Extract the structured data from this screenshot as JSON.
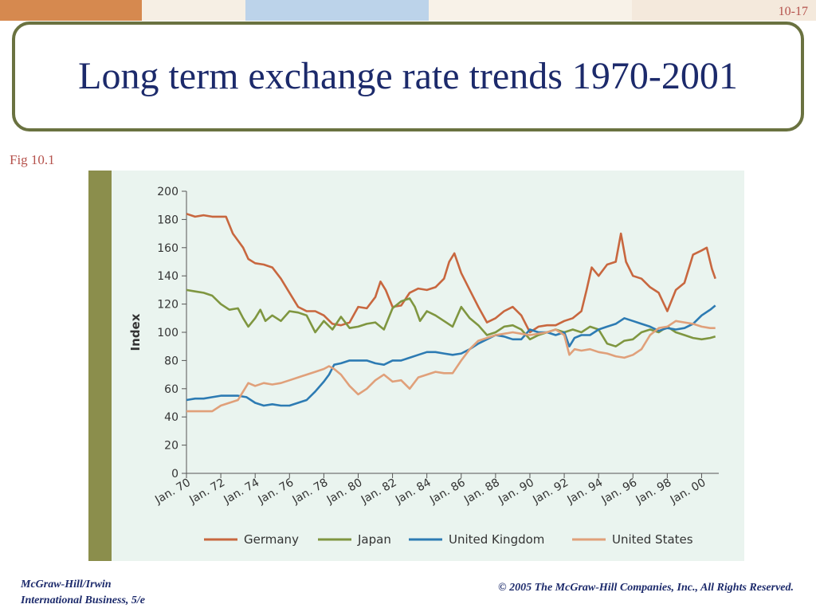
{
  "slide": {
    "number": "10-17",
    "title": "Long term exchange rate trends 1970-2001",
    "fig_label": "Fig 10.1",
    "footer_left_line1": "McGraw-Hill/Irwin",
    "footer_left_line2": "International Business, 5/e",
    "footer_right": "© 2005 The McGraw-Hill Companies, Inc., All Rights Reserved."
  },
  "colors": {
    "band_orange": "#d6894f",
    "band_blue": "#bcd3ea",
    "title_border": "#6a7240",
    "title_text": "#1c2a6b",
    "chart_background": "#eaf4ef",
    "chart_stripe": "#8b8e4c"
  },
  "chart_data": {
    "type": "line",
    "title": "",
    "xlabel": "",
    "ylabel": "Index",
    "xlim": [
      1970,
      2001
    ],
    "ylim": [
      0,
      200
    ],
    "y_ticks": [
      0,
      20,
      40,
      60,
      80,
      100,
      120,
      140,
      160,
      180,
      200
    ],
    "x_ticks": [
      {
        "value": 1970,
        "label": "Jan. 70"
      },
      {
        "value": 1972,
        "label": "Jan. 72"
      },
      {
        "value": 1974,
        "label": "Jan. 74"
      },
      {
        "value": 1976,
        "label": "Jan. 76"
      },
      {
        "value": 1978,
        "label": "Jan. 78"
      },
      {
        "value": 1980,
        "label": "Jan. 80"
      },
      {
        "value": 1982,
        "label": "Jan. 82"
      },
      {
        "value": 1984,
        "label": "Jan. 84"
      },
      {
        "value": 1986,
        "label": "Jan. 86"
      },
      {
        "value": 1988,
        "label": "Jan. 88"
      },
      {
        "value": 1990,
        "label": "Jan. 90"
      },
      {
        "value": 1992,
        "label": "Jan. 92"
      },
      {
        "value": 1994,
        "label": "Jan. 94"
      },
      {
        "value": 1996,
        "label": "Jan. 96"
      },
      {
        "value": 1998,
        "label": "Jan. 98"
      },
      {
        "value": 2000,
        "label": "Jan. 00"
      }
    ],
    "grid": false,
    "legend_position": "bottom",
    "series": [
      {
        "name": "Germany",
        "color": "#c8673f",
        "points": [
          [
            1970,
            184
          ],
          [
            1970.5,
            182
          ],
          [
            1971,
            183
          ],
          [
            1971.5,
            182
          ],
          [
            1972,
            182
          ],
          [
            1972.3,
            182
          ],
          [
            1972.5,
            176
          ],
          [
            1972.7,
            170
          ],
          [
            1973,
            165
          ],
          [
            1973.3,
            160
          ],
          [
            1973.6,
            152
          ],
          [
            1974,
            149
          ],
          [
            1974.5,
            148
          ],
          [
            1975,
            146
          ],
          [
            1975.5,
            138
          ],
          [
            1976,
            128
          ],
          [
            1976.5,
            118
          ],
          [
            1977,
            115
          ],
          [
            1977.5,
            115
          ],
          [
            1978,
            112
          ],
          [
            1978.5,
            106
          ],
          [
            1979,
            105
          ],
          [
            1979.5,
            107
          ],
          [
            1980,
            118
          ],
          [
            1980.5,
            117
          ],
          [
            1981,
            125
          ],
          [
            1981.3,
            136
          ],
          [
            1981.6,
            130
          ],
          [
            1982,
            118
          ],
          [
            1982.5,
            119
          ],
          [
            1983,
            128
          ],
          [
            1983.5,
            131
          ],
          [
            1984,
            130
          ],
          [
            1984.5,
            132
          ],
          [
            1985,
            138
          ],
          [
            1985.3,
            150
          ],
          [
            1985.6,
            156
          ],
          [
            1986,
            142
          ],
          [
            1986.5,
            130
          ],
          [
            1987,
            118
          ],
          [
            1987.5,
            107
          ],
          [
            1988,
            110
          ],
          [
            1988.5,
            115
          ],
          [
            1989,
            118
          ],
          [
            1989.5,
            112
          ],
          [
            1990,
            100
          ],
          [
            1990.5,
            104
          ],
          [
            1991,
            105
          ],
          [
            1991.5,
            105
          ],
          [
            1992,
            108
          ],
          [
            1992.5,
            110
          ],
          [
            1993,
            115
          ],
          [
            1993.3,
            130
          ],
          [
            1993.6,
            146
          ],
          [
            1994,
            140
          ],
          [
            1994.5,
            148
          ],
          [
            1995,
            150
          ],
          [
            1995.3,
            170
          ],
          [
            1995.6,
            150
          ],
          [
            1996,
            140
          ],
          [
            1996.5,
            138
          ],
          [
            1997,
            132
          ],
          [
            1997.5,
            128
          ],
          [
            1998,
            115
          ],
          [
            1998.5,
            130
          ],
          [
            1999,
            135
          ],
          [
            1999.5,
            155
          ],
          [
            2000,
            158
          ],
          [
            2000.3,
            160
          ],
          [
            2000.6,
            145
          ],
          [
            2000.8,
            138
          ]
        ]
      },
      {
        "name": "Japan",
        "color": "#7f9640",
        "points": [
          [
            1970,
            130
          ],
          [
            1970.5,
            129
          ],
          [
            1971,
            128
          ],
          [
            1971.5,
            126
          ],
          [
            1972,
            120
          ],
          [
            1972.5,
            116
          ],
          [
            1973,
            117
          ],
          [
            1973.3,
            110
          ],
          [
            1973.6,
            104
          ],
          [
            1974,
            110
          ],
          [
            1974.3,
            116
          ],
          [
            1974.6,
            108
          ],
          [
            1975,
            112
          ],
          [
            1975.5,
            108
          ],
          [
            1976,
            115
          ],
          [
            1976.5,
            114
          ],
          [
            1977,
            112
          ],
          [
            1977.5,
            100
          ],
          [
            1978,
            108
          ],
          [
            1978.5,
            102
          ],
          [
            1979,
            111
          ],
          [
            1979.5,
            103
          ],
          [
            1980,
            104
          ],
          [
            1980.5,
            106
          ],
          [
            1981,
            107
          ],
          [
            1981.5,
            102
          ],
          [
            1982,
            117
          ],
          [
            1982.5,
            122
          ],
          [
            1983,
            124
          ],
          [
            1983.3,
            118
          ],
          [
            1983.6,
            108
          ],
          [
            1984,
            115
          ],
          [
            1984.5,
            112
          ],
          [
            1985,
            108
          ],
          [
            1985.5,
            104
          ],
          [
            1986,
            118
          ],
          [
            1986.5,
            110
          ],
          [
            1987,
            105
          ],
          [
            1987.5,
            98
          ],
          [
            1988,
            100
          ],
          [
            1988.5,
            104
          ],
          [
            1989,
            105
          ],
          [
            1989.5,
            102
          ],
          [
            1990,
            95
          ],
          [
            1990.5,
            98
          ],
          [
            1991,
            100
          ],
          [
            1991.5,
            102
          ],
          [
            1992,
            100
          ],
          [
            1992.5,
            102
          ],
          [
            1993,
            100
          ],
          [
            1993.5,
            104
          ],
          [
            1994,
            102
          ],
          [
            1994.5,
            92
          ],
          [
            1995,
            90
          ],
          [
            1995.5,
            94
          ],
          [
            1996,
            95
          ],
          [
            1996.5,
            100
          ],
          [
            1997,
            102
          ],
          [
            1997.5,
            100
          ],
          [
            1998,
            104
          ],
          [
            1998.5,
            100
          ],
          [
            1999,
            98
          ],
          [
            1999.5,
            96
          ],
          [
            2000,
            95
          ],
          [
            2000.5,
            96
          ],
          [
            2000.8,
            97
          ]
        ]
      },
      {
        "name": "United Kingdom",
        "color": "#2d7bb3",
        "points": [
          [
            1970,
            52
          ],
          [
            1970.5,
            53
          ],
          [
            1971,
            53
          ],
          [
            1971.5,
            54
          ],
          [
            1972,
            55
          ],
          [
            1972.5,
            55
          ],
          [
            1973,
            55
          ],
          [
            1973.5,
            54
          ],
          [
            1974,
            50
          ],
          [
            1974.5,
            48
          ],
          [
            1975,
            49
          ],
          [
            1975.5,
            48
          ],
          [
            1976,
            48
          ],
          [
            1976.5,
            50
          ],
          [
            1977,
            52
          ],
          [
            1977.5,
            58
          ],
          [
            1978,
            65
          ],
          [
            1978.3,
            70
          ],
          [
            1978.6,
            77
          ],
          [
            1979,
            78
          ],
          [
            1979.5,
            80
          ],
          [
            1980,
            80
          ],
          [
            1980.5,
            80
          ],
          [
            1981,
            78
          ],
          [
            1981.5,
            77
          ],
          [
            1982,
            80
          ],
          [
            1982.5,
            80
          ],
          [
            1983,
            82
          ],
          [
            1983.5,
            84
          ],
          [
            1984,
            86
          ],
          [
            1984.5,
            86
          ],
          [
            1985,
            85
          ],
          [
            1985.5,
            84
          ],
          [
            1986,
            85
          ],
          [
            1986.5,
            88
          ],
          [
            1987,
            92
          ],
          [
            1987.5,
            95
          ],
          [
            1988,
            98
          ],
          [
            1988.5,
            97
          ],
          [
            1989,
            95
          ],
          [
            1989.5,
            95
          ],
          [
            1990,
            102
          ],
          [
            1990.5,
            100
          ],
          [
            1991,
            100
          ],
          [
            1991.5,
            98
          ],
          [
            1992,
            100
          ],
          [
            1992.3,
            90
          ],
          [
            1992.6,
            96
          ],
          [
            1993,
            98
          ],
          [
            1993.5,
            98
          ],
          [
            1994,
            102
          ],
          [
            1994.5,
            104
          ],
          [
            1995,
            106
          ],
          [
            1995.5,
            110
          ],
          [
            1996,
            108
          ],
          [
            1996.5,
            106
          ],
          [
            1997,
            104
          ],
          [
            1997.5,
            101
          ],
          [
            1998,
            103
          ],
          [
            1998.5,
            102
          ],
          [
            1999,
            103
          ],
          [
            1999.5,
            106
          ],
          [
            2000,
            112
          ],
          [
            2000.5,
            116
          ],
          [
            2000.8,
            119
          ]
        ]
      },
      {
        "name": "United States",
        "color": "#e0a07a",
        "points": [
          [
            1970,
            44
          ],
          [
            1970.5,
            44
          ],
          [
            1971,
            44
          ],
          [
            1971.5,
            44
          ],
          [
            1972,
            48
          ],
          [
            1972.5,
            50
          ],
          [
            1973,
            52
          ],
          [
            1973.3,
            58
          ],
          [
            1973.6,
            64
          ],
          [
            1974,
            62
          ],
          [
            1974.5,
            64
          ],
          [
            1975,
            63
          ],
          [
            1975.5,
            64
          ],
          [
            1976,
            66
          ],
          [
            1976.5,
            68
          ],
          [
            1977,
            70
          ],
          [
            1977.5,
            72
          ],
          [
            1978,
            74
          ],
          [
            1978.3,
            76
          ],
          [
            1978.6,
            74
          ],
          [
            1979,
            70
          ],
          [
            1979.5,
            62
          ],
          [
            1980,
            56
          ],
          [
            1980.5,
            60
          ],
          [
            1981,
            66
          ],
          [
            1981.5,
            70
          ],
          [
            1982,
            65
          ],
          [
            1982.5,
            66
          ],
          [
            1983,
            60
          ],
          [
            1983.5,
            68
          ],
          [
            1984,
            70
          ],
          [
            1984.5,
            72
          ],
          [
            1985,
            71
          ],
          [
            1985.5,
            71
          ],
          [
            1986,
            80
          ],
          [
            1986.5,
            88
          ],
          [
            1987,
            94
          ],
          [
            1987.5,
            96
          ],
          [
            1988,
            98
          ],
          [
            1988.5,
            99
          ],
          [
            1989,
            100
          ],
          [
            1989.5,
            99
          ],
          [
            1990,
            98
          ],
          [
            1990.5,
            99
          ],
          [
            1991,
            100
          ],
          [
            1991.5,
            102
          ],
          [
            1992,
            98
          ],
          [
            1992.3,
            84
          ],
          [
            1992.6,
            88
          ],
          [
            1993,
            87
          ],
          [
            1993.5,
            88
          ],
          [
            1994,
            86
          ],
          [
            1994.5,
            85
          ],
          [
            1995,
            83
          ],
          [
            1995.5,
            82
          ],
          [
            1996,
            84
          ],
          [
            1996.5,
            88
          ],
          [
            1997,
            98
          ],
          [
            1997.5,
            103
          ],
          [
            1998,
            104
          ],
          [
            1998.5,
            108
          ],
          [
            1999,
            107
          ],
          [
            1999.5,
            106
          ],
          [
            2000,
            104
          ],
          [
            2000.5,
            103
          ],
          [
            2000.8,
            103
          ]
        ]
      }
    ]
  }
}
